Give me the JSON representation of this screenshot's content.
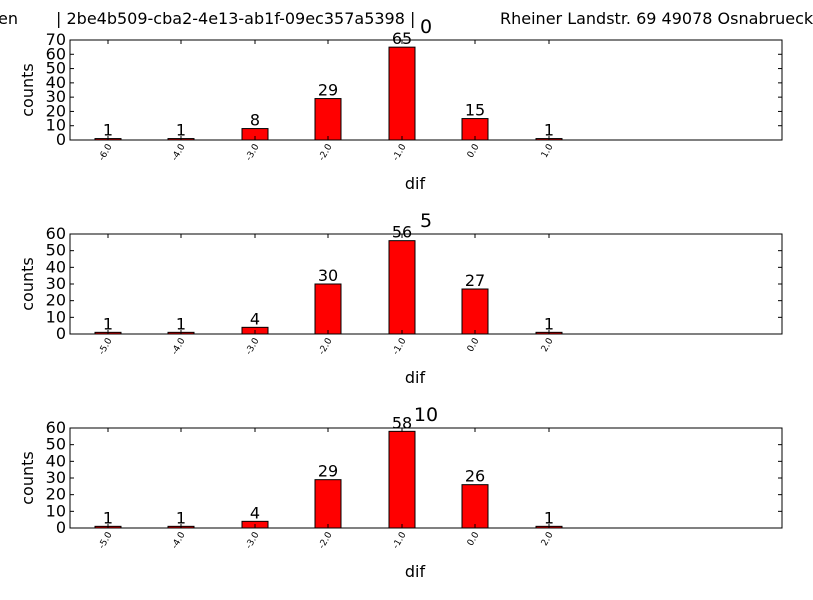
{
  "header": {
    "left_text": "en",
    "id_text": "| 2be4b509-cba2-4e13-ab1f-09ec357a5398 |",
    "address_text": "Rheiner Landstr. 69 49078 Osnabrueck"
  },
  "colors": {
    "bar_fill": "#ff0000",
    "bar_edge": "#000000",
    "axis": "#000000"
  },
  "chart_data": [
    {
      "type": "bar",
      "title": "0",
      "xlabel": "dif",
      "ylabel": "counts",
      "categories": [
        "-6.0",
        "-4.0",
        "-3.0",
        "-2.0",
        "-1.0",
        "0.0",
        "1.0"
      ],
      "values": [
        1,
        1,
        8,
        29,
        65,
        15,
        1
      ],
      "ylim": [
        0,
        70
      ],
      "yticks": [
        0,
        10,
        20,
        30,
        40,
        50,
        60,
        70
      ],
      "grid": false
    },
    {
      "type": "bar",
      "title": "5",
      "xlabel": "dif",
      "ylabel": "counts",
      "categories": [
        "-5.0",
        "-4.0",
        "-3.0",
        "-2.0",
        "-1.0",
        "0.0",
        "2.0"
      ],
      "values": [
        1,
        1,
        4,
        30,
        56,
        27,
        1
      ],
      "ylim": [
        0,
        60
      ],
      "yticks": [
        0,
        10,
        20,
        30,
        40,
        50,
        60
      ],
      "grid": false
    },
    {
      "type": "bar",
      "title": "10",
      "xlabel": "dif",
      "ylabel": "counts",
      "categories": [
        "-5.0",
        "-4.0",
        "-3.0",
        "-2.0",
        "-1.0",
        "0.0",
        "2.0"
      ],
      "values": [
        1,
        1,
        4,
        29,
        58,
        26,
        1
      ],
      "ylim": [
        0,
        60
      ],
      "yticks": [
        0,
        10,
        20,
        30,
        40,
        50,
        60
      ],
      "grid": false
    }
  ]
}
